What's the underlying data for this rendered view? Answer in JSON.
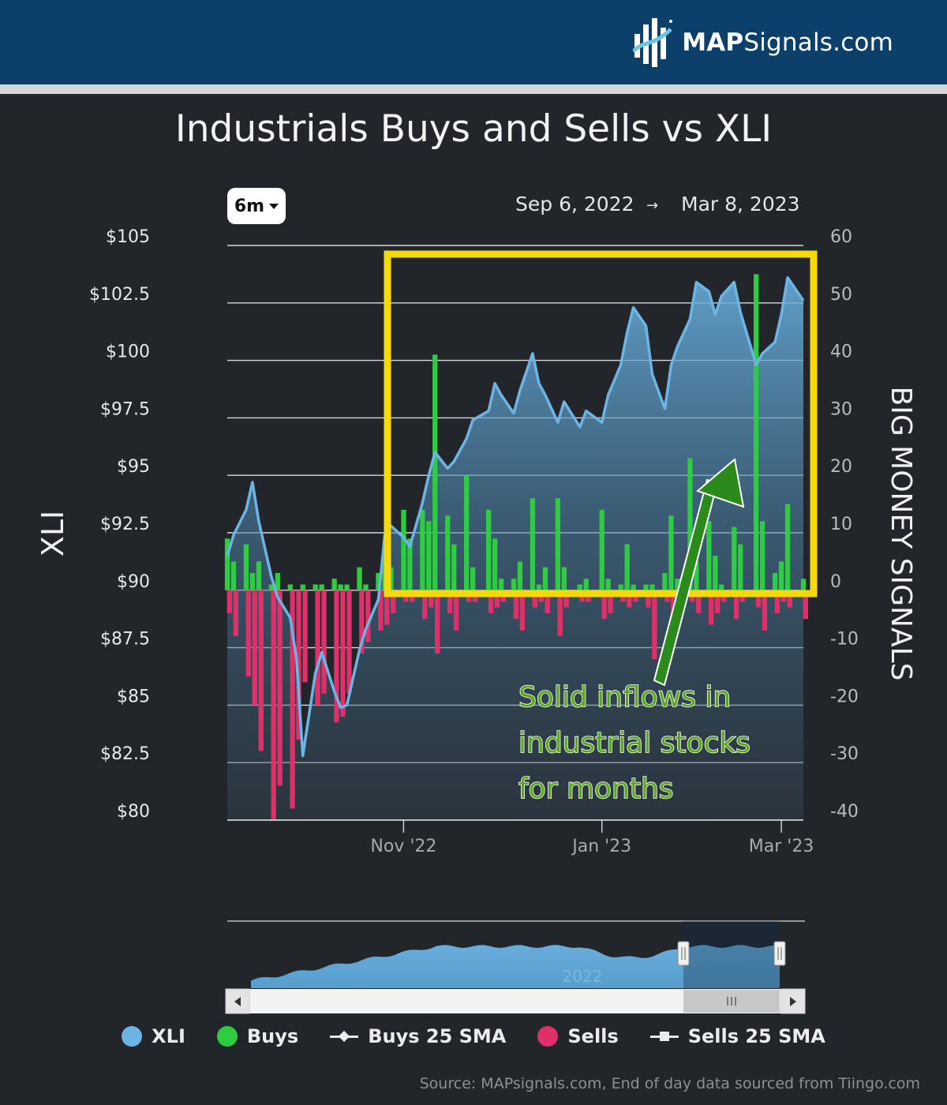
{
  "brand": {
    "name_bold": "MAP",
    "name_regular": "Signals.com"
  },
  "header": {
    "title": "Industrials Buys and Sells vs XLI",
    "range_button": "6m",
    "date_from": "Sep 6, 2022",
    "date_arrow": "→",
    "date_to": "Mar 8, 2023"
  },
  "chart_data": {
    "type": "line",
    "title": "Industrials Buys and Sells vs XLI",
    "y_left_label": "XLI",
    "y_right_label": "BIG MONEY SIGNALS",
    "y_left_ticks": [
      "$80",
      "$82.5",
      "$85",
      "$87.5",
      "$90",
      "$92.5",
      "$95",
      "$97.5",
      "$100",
      "$102.5",
      "$105"
    ],
    "y_right_ticks": [
      "-40",
      "-30",
      "-20",
      "-10",
      "0",
      "10",
      "20",
      "30",
      "40",
      "50",
      "60"
    ],
    "y_left_range": [
      80,
      105
    ],
    "y_right_range": [
      -40,
      60
    ],
    "x_ticks": [
      {
        "label": "Nov '22",
        "date": "2022-11-01"
      },
      {
        "label": "Jan '23",
        "date": "2023-01-03"
      },
      {
        "label": "Mar '23",
        "date": "2023-03-01"
      }
    ],
    "x_range": [
      "2022-09-06",
      "2023-03-08"
    ],
    "xli_series": {
      "name": "XLI",
      "color": "#6cb4e4",
      "dates": [
        "2022-09-06",
        "2022-09-08",
        "2022-09-12",
        "2022-09-14",
        "2022-09-16",
        "2022-09-20",
        "2022-09-22",
        "2022-09-26",
        "2022-09-28",
        "2022-09-30",
        "2022-10-04",
        "2022-10-06",
        "2022-10-10",
        "2022-10-12",
        "2022-10-14",
        "2022-10-18",
        "2022-10-20",
        "2022-10-24",
        "2022-10-26",
        "2022-10-28",
        "2022-11-01",
        "2022-11-03",
        "2022-11-07",
        "2022-11-09",
        "2022-11-11",
        "2022-11-15",
        "2022-11-17",
        "2022-11-21",
        "2022-11-23",
        "2022-11-28",
        "2022-11-30",
        "2022-12-02",
        "2022-12-06",
        "2022-12-08",
        "2022-12-12",
        "2022-12-14",
        "2022-12-16",
        "2022-12-20",
        "2022-12-22",
        "2022-12-27",
        "2022-12-29",
        "2023-01-03",
        "2023-01-05",
        "2023-01-09",
        "2023-01-11",
        "2023-01-13",
        "2023-01-17",
        "2023-01-19",
        "2023-01-23",
        "2023-01-25",
        "2023-01-27",
        "2023-01-31",
        "2023-02-02",
        "2023-02-06",
        "2023-02-08",
        "2023-02-10",
        "2023-02-14",
        "2023-02-16",
        "2023-02-21",
        "2023-02-23",
        "2023-02-27",
        "2023-03-01",
        "2023-03-03",
        "2023-03-08"
      ],
      "values": [
        91.5,
        92.4,
        93.5,
        94.7,
        93.0,
        90.6,
        89.7,
        88.8,
        87.0,
        82.8,
        86.4,
        87.3,
        85.6,
        84.9,
        85.0,
        87.4,
        88.3,
        89.6,
        92.4,
        92.8,
        92.3,
        91.9,
        93.8,
        95.0,
        96.0,
        95.3,
        95.6,
        96.6,
        97.4,
        97.8,
        99.0,
        98.5,
        97.7,
        98.7,
        100.3,
        99.0,
        98.5,
        97.3,
        98.2,
        97.1,
        97.8,
        97.3,
        98.5,
        99.8,
        101.2,
        102.3,
        101.5,
        99.4,
        97.9,
        99.8,
        100.6,
        101.8,
        103.4,
        103.0,
        102.0,
        102.8,
        103.4,
        102.1,
        99.8,
        100.3,
        100.8,
        102.0,
        103.6,
        102.6
      ]
    },
    "buys_series": {
      "name": "Buys",
      "color": "#2ecc40",
      "values": [
        9,
        5,
        8,
        3,
        5,
        1,
        3,
        1,
        0,
        1,
        1,
        1,
        2,
        1,
        1,
        4,
        1,
        3,
        7,
        4,
        14,
        9,
        14,
        12,
        41,
        13,
        8,
        20,
        4,
        14,
        9,
        2,
        2,
        5,
        16,
        1,
        4,
        16,
        4,
        1,
        2,
        14,
        2,
        1,
        8,
        1,
        1,
        1,
        3,
        13,
        2,
        23,
        5,
        12,
        6,
        1,
        11,
        8,
        55,
        12,
        3,
        5,
        15,
        2
      ]
    },
    "sells_series": {
      "name": "Sells",
      "color": "#e0306a",
      "values": [
        -4,
        -8,
        -15,
        -20,
        -28,
        -40,
        -34,
        -38,
        -26,
        -16,
        -20,
        -18,
        -23,
        -22,
        -18,
        -11,
        -9,
        -7,
        -6,
        -4,
        -2,
        -2,
        -5,
        -3,
        -11,
        -4,
        -7,
        -2,
        -2,
        -4,
        -3,
        -2,
        -5,
        -7,
        -3,
        -2,
        -4,
        -8,
        -3,
        -2,
        -2,
        -5,
        -4,
        -2,
        -3,
        -2,
        -3,
        -12,
        -2,
        -5,
        -3,
        -2,
        -4,
        -6,
        -4,
        -2,
        -5,
        -2,
        -3,
        -7,
        -4,
        -2,
        -3,
        -5
      ]
    },
    "annotation": {
      "lines": [
        "Solid inflows in",
        "industrial stocks",
        "for months"
      ],
      "color": "#5aa51e"
    },
    "navigator": {
      "label": "2022"
    },
    "legend": [
      {
        "name": "XLI",
        "marker": "dot",
        "color": "#6cb4e4"
      },
      {
        "name": "Buys",
        "marker": "dot",
        "color": "#2ecc40"
      },
      {
        "name": "Buys 25 SMA",
        "marker": "line-diamond",
        "color": "#ececec"
      },
      {
        "name": "Sells",
        "marker": "dot",
        "color": "#e0306a"
      },
      {
        "name": "Sells 25 SMA",
        "marker": "line-square",
        "color": "#ececec"
      }
    ]
  },
  "footer": {
    "source": "Source: MAPsignals.com, End of day data sourced from Tiingo.com"
  }
}
